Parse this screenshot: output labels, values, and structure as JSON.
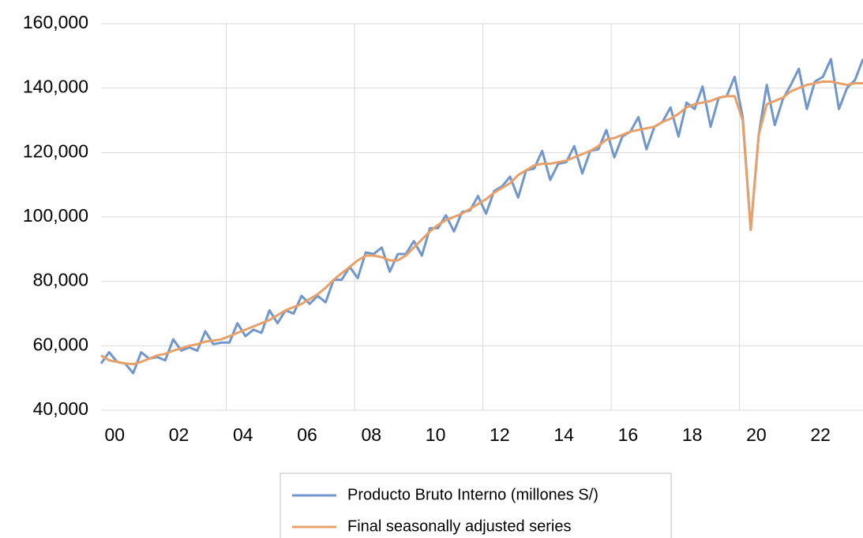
{
  "chart_data": {
    "type": "line",
    "categories": [
      "00",
      null,
      null,
      null,
      null,
      null,
      null,
      null,
      "02",
      null,
      null,
      null,
      null,
      null,
      null,
      null,
      "04",
      null,
      null,
      null,
      null,
      null,
      null,
      null,
      "06",
      null,
      null,
      null,
      null,
      null,
      null,
      null,
      "08",
      null,
      null,
      null,
      null,
      null,
      null,
      null,
      "10",
      null,
      null,
      null,
      null,
      null,
      null,
      null,
      "12",
      null,
      null,
      null,
      null,
      null,
      null,
      null,
      "14",
      null,
      null,
      null,
      null,
      null,
      null,
      null,
      "16",
      null,
      null,
      null,
      null,
      null,
      null,
      null,
      "18",
      null,
      null,
      null,
      null,
      null,
      null,
      null,
      "20",
      null,
      null,
      null,
      null,
      null,
      null,
      null,
      "22",
      null,
      null,
      null,
      null,
      null,
      null,
      null
    ],
    "series": [
      {
        "name": "Producto Bruto Interno (millones S/)",
        "color": "#7096cc",
        "values": [
          54500,
          58000,
          55000,
          54500,
          51500,
          58000,
          56000,
          56500,
          55500,
          62000,
          58500,
          59500,
          58500,
          64500,
          60500,
          61000,
          61000,
          67000,
          63000,
          65000,
          64000,
          71000,
          67000,
          71000,
          70000,
          75500,
          73000,
          75500,
          73500,
          80500,
          80500,
          84500,
          81000,
          89000,
          88500,
          90500,
          83000,
          88500,
          88500,
          92500,
          88000,
          96500,
          96500,
          100500,
          95500,
          101500,
          102000,
          106500,
          101000,
          108000,
          109500,
          112500,
          106000,
          114500,
          115000,
          120500,
          111500,
          116500,
          117000,
          122000,
          113500,
          120500,
          121000,
          127000,
          118500,
          125000,
          126500,
          131000,
          121000,
          128000,
          129500,
          134000,
          125000,
          135500,
          133500,
          140500,
          128000,
          137000,
          137500,
          143500,
          131000,
          96000,
          125500,
          141000,
          128500,
          136500,
          141000,
          146000,
          133500,
          142000,
          143500,
          149000,
          133500,
          140000,
          142500,
          149000
        ]
      },
      {
        "name": "Final seasonally adjusted series",
        "color": "#e8a068",
        "values": [
          57000,
          55500,
          55000,
          54500,
          54300,
          55000,
          56000,
          57000,
          57500,
          58500,
          59200,
          60000,
          60500,
          61300,
          61600,
          62000,
          63000,
          64000,
          65000,
          66000,
          67000,
          68000,
          69500,
          71000,
          72000,
          73000,
          74500,
          76000,
          78000,
          80500,
          82500,
          84500,
          86500,
          88000,
          88000,
          87500,
          86500,
          86500,
          88000,
          90500,
          93000,
          95500,
          97500,
          99000,
          100000,
          101000,
          102500,
          104000,
          105500,
          107500,
          109000,
          110500,
          113000,
          114500,
          116000,
          116500,
          116500,
          117000,
          117500,
          118500,
          119500,
          120500,
          122000,
          124000,
          124500,
          125500,
          126500,
          127000,
          127500,
          128000,
          129500,
          130500,
          132000,
          134000,
          135000,
          135500,
          136000,
          137000,
          137500,
          137500,
          130000,
          96000,
          125500,
          135000,
          136000,
          137000,
          139000,
          140000,
          141000,
          141500,
          142000,
          142000,
          141500,
          141000,
          141500,
          141500
        ]
      }
    ],
    "ylim": [
      40000,
      160000
    ],
    "yticks": [
      {
        "value": 40000,
        "label": "40,000"
      },
      {
        "value": 60000,
        "label": "60,000"
      },
      {
        "value": 80000,
        "label": "80,000"
      },
      {
        "value": 100000,
        "label": "100,000"
      },
      {
        "value": 120000,
        "label": "120,000"
      },
      {
        "value": 140000,
        "label": "140,000"
      },
      {
        "value": 160000,
        "label": "160,000"
      }
    ],
    "grid": true,
    "legend": "bottom"
  }
}
